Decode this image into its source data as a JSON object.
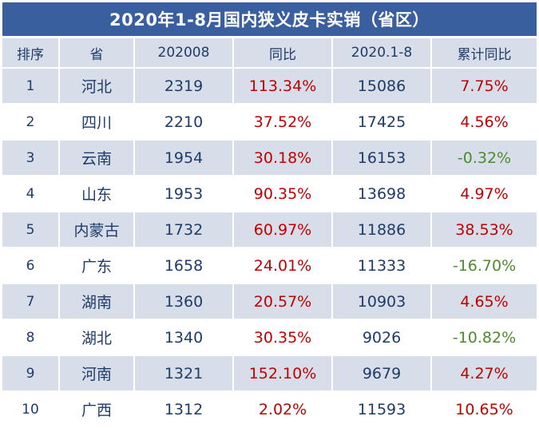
{
  "title": "2020年1-8月国内狭义皮卡实销（省区）",
  "colors": {
    "header_bar": "#3a5f9e",
    "row_band": "#d7dee9",
    "text": "#1f3b6a",
    "positive": "#c00000",
    "negative": "#4f8a2c"
  },
  "headers": [
    "排序",
    "省",
    "202008",
    "同比",
    "2020.1-8",
    "累计同比"
  ],
  "rows": [
    {
      "rank": "1",
      "province": "河北",
      "aug": "2319",
      "yoy": "113.34%",
      "ytd": "15086",
      "ytd_yoy": "7.75%"
    },
    {
      "rank": "2",
      "province": "四川",
      "aug": "2210",
      "yoy": "37.52%",
      "ytd": "17425",
      "ytd_yoy": "4.56%"
    },
    {
      "rank": "3",
      "province": "云南",
      "aug": "1954",
      "yoy": "30.18%",
      "ytd": "16153",
      "ytd_yoy": "-0.32%"
    },
    {
      "rank": "4",
      "province": "山东",
      "aug": "1953",
      "yoy": "90.35%",
      "ytd": "13698",
      "ytd_yoy": "4.97%"
    },
    {
      "rank": "5",
      "province": "内蒙古",
      "aug": "1732",
      "yoy": "60.97%",
      "ytd": "11886",
      "ytd_yoy": "38.53%"
    },
    {
      "rank": "6",
      "province": "广东",
      "aug": "1658",
      "yoy": "24.01%",
      "ytd": "11333",
      "ytd_yoy": "-16.70%"
    },
    {
      "rank": "7",
      "province": "湖南",
      "aug": "1360",
      "yoy": "20.57%",
      "ytd": "10903",
      "ytd_yoy": "4.65%"
    },
    {
      "rank": "8",
      "province": "湖北",
      "aug": "1340",
      "yoy": "30.35%",
      "ytd": "9026",
      "ytd_yoy": "-10.82%"
    },
    {
      "rank": "9",
      "province": "河南",
      "aug": "1321",
      "yoy": "152.10%",
      "ytd": "9679",
      "ytd_yoy": "4.27%"
    },
    {
      "rank": "10",
      "province": "广西",
      "aug": "1312",
      "yoy": "2.02%",
      "ytd": "11593",
      "ytd_yoy": "10.65%"
    }
  ]
}
